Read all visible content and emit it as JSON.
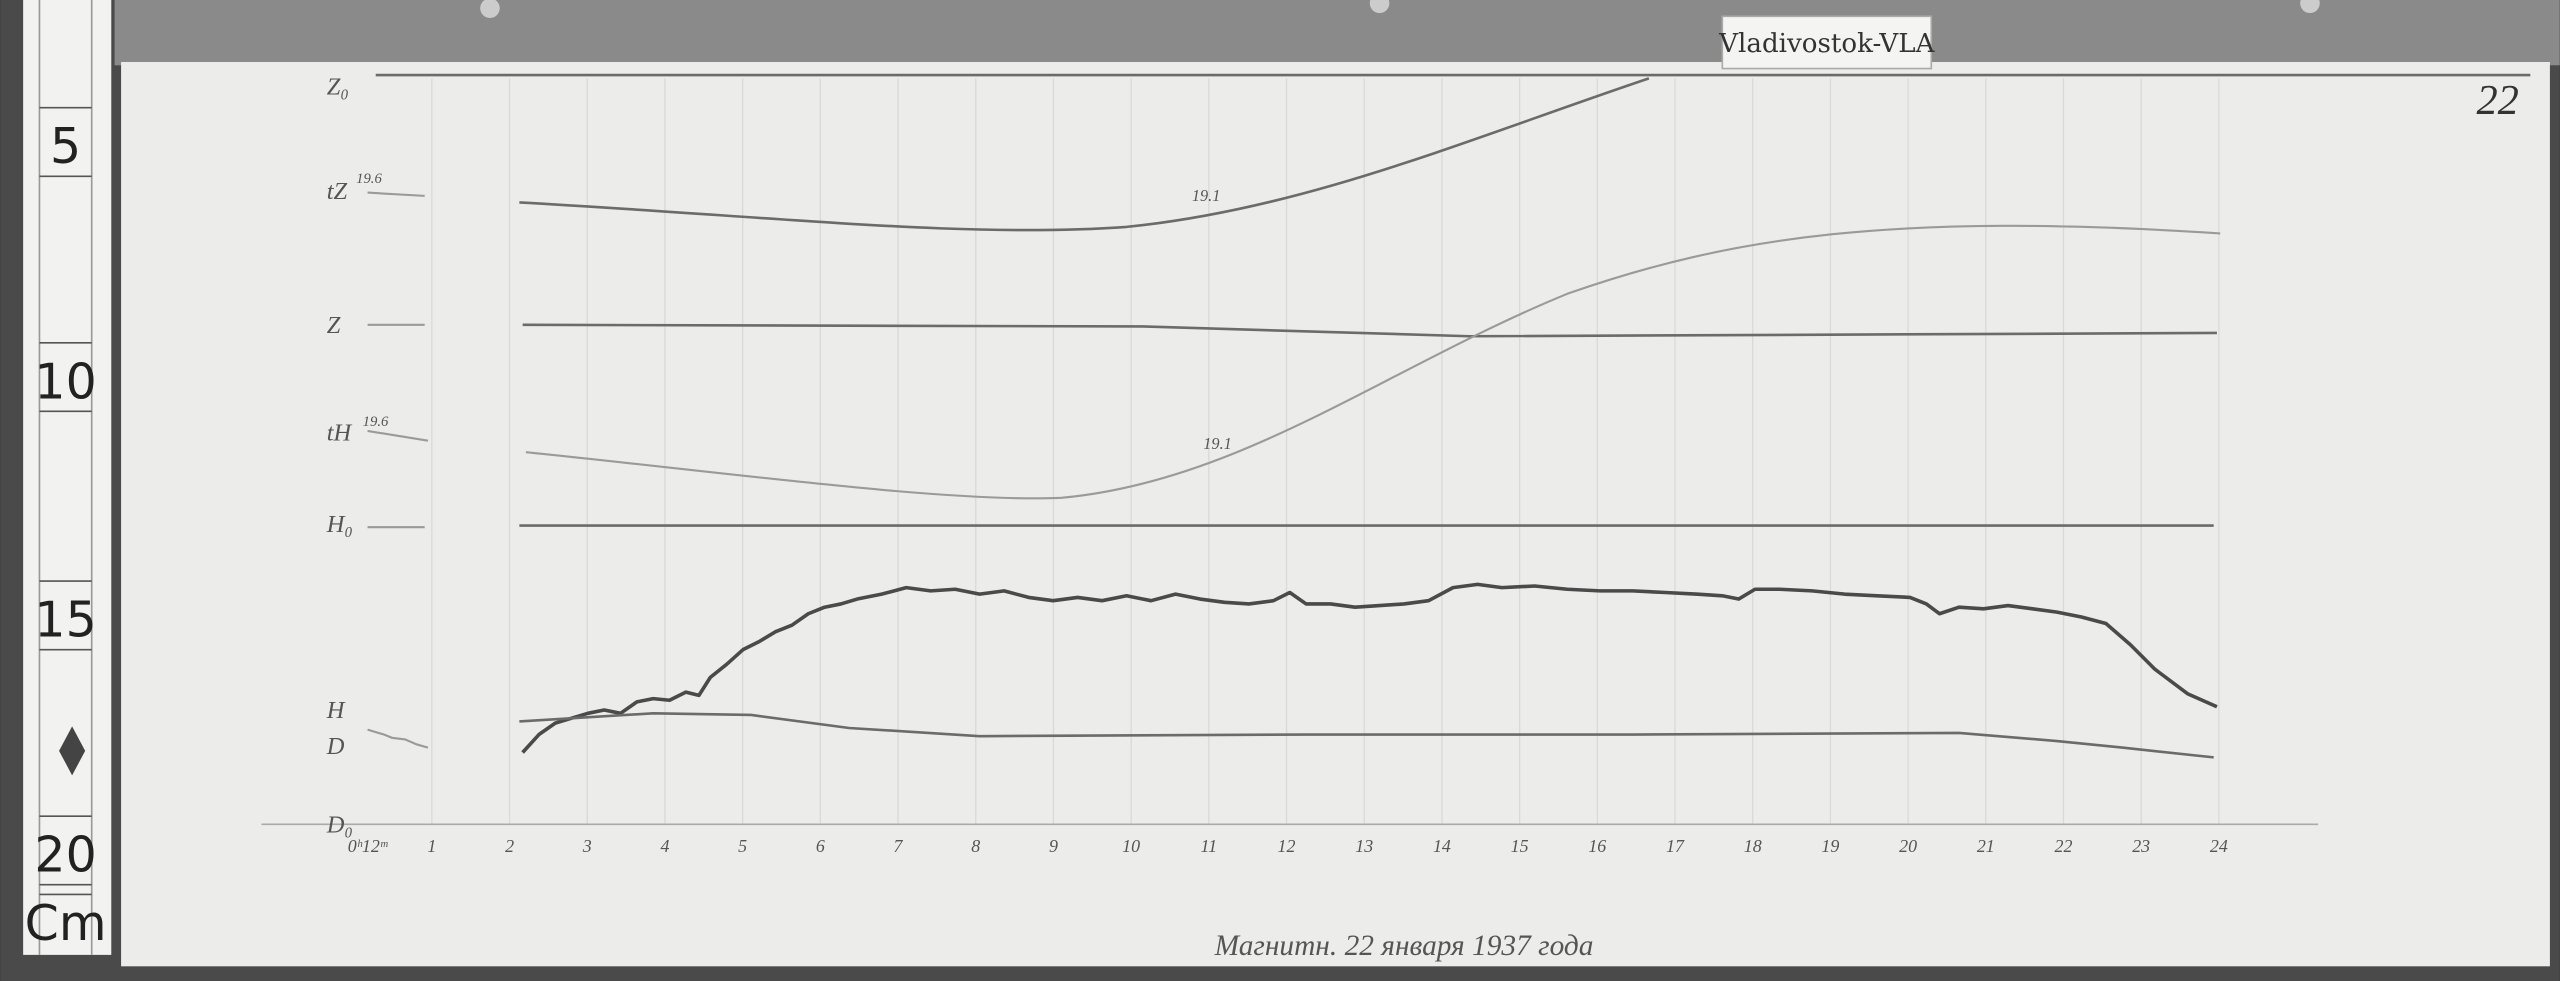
{
  "label": "Vladivostok-VLA",
  "page_number": "22",
  "ruler": {
    "marks": [
      "5",
      "10",
      "15",
      "20"
    ],
    "unit": "Cm"
  },
  "traces": [
    "Z₀",
    "tZ",
    "Z",
    "tH",
    "H₀",
    "H",
    "D",
    "D₀"
  ],
  "annotations": {
    "tZ_start": "19.6",
    "tH_start": "19.6",
    "tZ_curve": "19.1",
    "tH_curve": "19.1"
  },
  "time_axis": {
    "ticks": [
      "0ʰ12ᵐ",
      "1",
      "2",
      "3",
      "4",
      "5",
      "6",
      "7",
      "8",
      "9",
      "10",
      "11",
      "12",
      "13",
      "14",
      "15",
      "16",
      "17",
      "18",
      "19",
      "20",
      "21",
      "22",
      "23",
      "24"
    ]
  },
  "footer": "Магнитн. 22 января 1937 года"
}
